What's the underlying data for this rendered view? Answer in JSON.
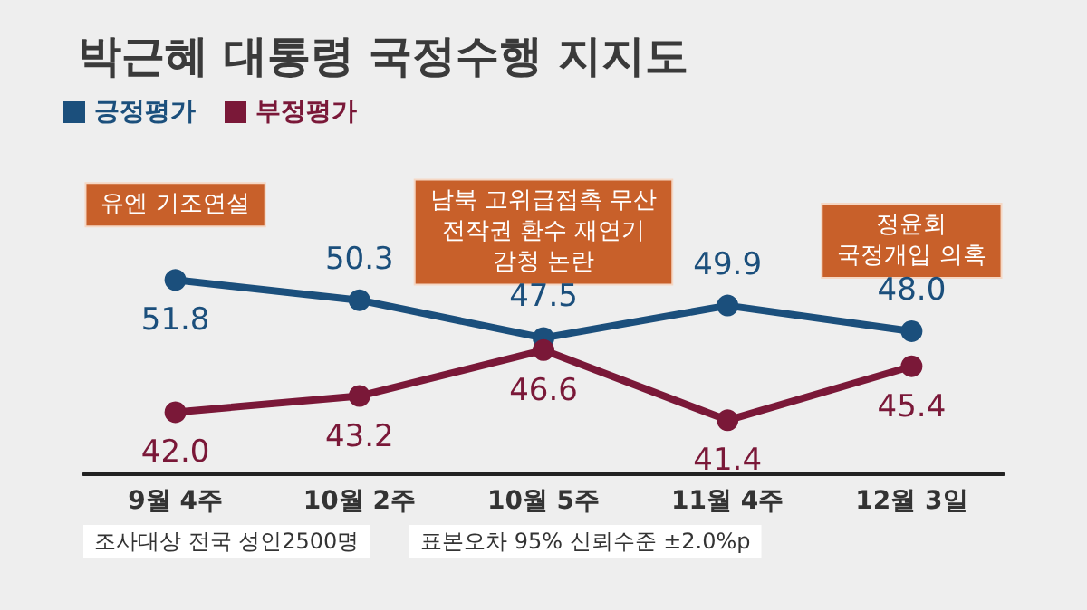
{
  "chart_data": {
    "type": "line",
    "title": "박근혜 대통령 국정수행 지지도",
    "categories": [
      "9월 4주",
      "10월 2주",
      "10월 5주",
      "11월 4주",
      "12월 3일"
    ],
    "series": [
      {
        "name": "긍정평가",
        "color": "#1b4f7c",
        "values": [
          51.8,
          50.3,
          47.5,
          49.9,
          48.0
        ],
        "value_labels": [
          "51.8",
          "50.3",
          "47.5",
          "49.9",
          "48.0"
        ]
      },
      {
        "name": "부정평가",
        "color": "#7a1838",
        "values": [
          42.0,
          43.2,
          46.6,
          41.4,
          45.4
        ],
        "value_labels": [
          "42.0",
          "43.2",
          "46.6",
          "41.4",
          "45.4"
        ]
      }
    ],
    "tick_labels": "x",
    "grid": false,
    "legend": "top left",
    "marker": "circle",
    "line_style": "solid",
    "annotations": [
      {
        "text": "유엔 기조연설",
        "x": "9월 4주",
        "y": 51.8
      },
      {
        "text": "남북 고위급접촉 무산\n전작권 환수 재연기\n감청 논란",
        "x": "10월 5주",
        "y": 47.5
      },
      {
        "text": "정윤회\n국정개입 의혹",
        "x": "12월 3일",
        "y": 48.0
      },
      "조사대상 전국 성인2500명",
      "표본오차 95% 신뢰수준 ±2.0%p"
    ]
  }
}
